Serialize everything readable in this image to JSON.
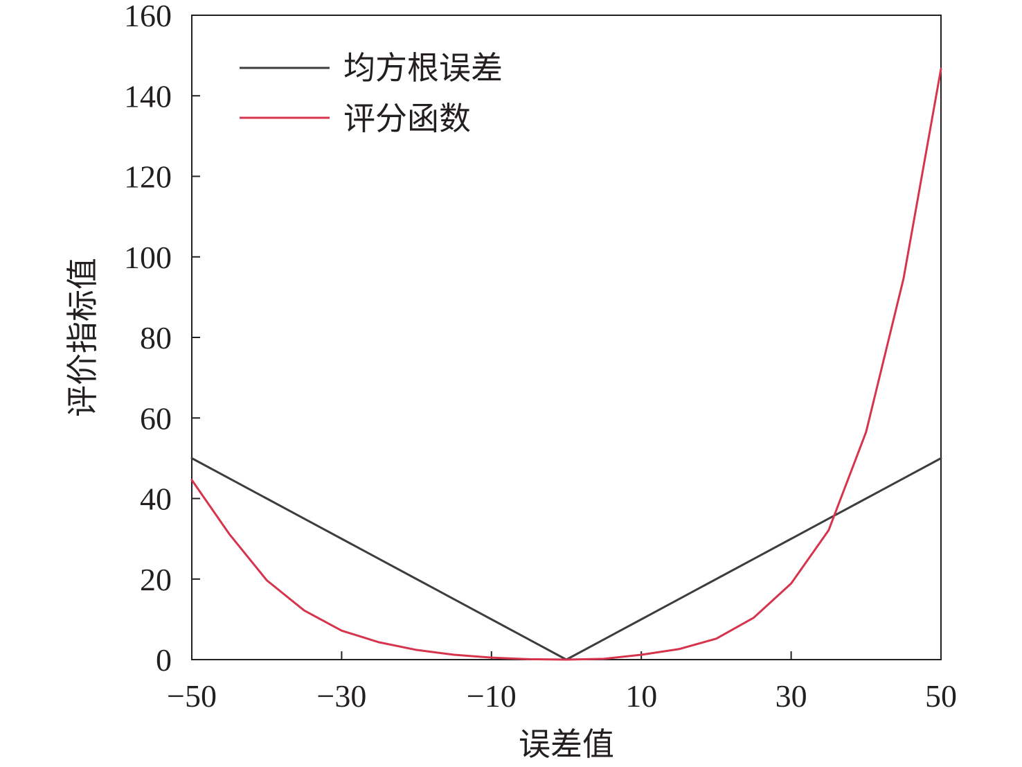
{
  "chart_data": {
    "type": "line",
    "xlabel": "误差值",
    "ylabel": "评价指标值",
    "xlim": [
      -50,
      50
    ],
    "ylim": [
      0,
      160
    ],
    "x_ticks": [
      -50,
      -30,
      -10,
      10,
      30,
      50
    ],
    "x_tick_labels": [
      "−50",
      "−30",
      "−10",
      "10",
      "30",
      "50"
    ],
    "y_ticks": [
      0,
      20,
      40,
      60,
      80,
      100,
      120,
      140,
      160
    ],
    "y_tick_labels": [
      "0",
      "20",
      "40",
      "60",
      "80",
      "100",
      "120",
      "140",
      "160"
    ],
    "grid": false,
    "legend_position": "top-left",
    "x": [
      -50,
      -45,
      -40,
      -35,
      -30,
      -25,
      -20,
      -15,
      -10,
      -5,
      0,
      5,
      10,
      15,
      20,
      25,
      30,
      35,
      40,
      45,
      50
    ],
    "series": [
      {
        "name": "均方根误差",
        "color": "#3d3d3d",
        "values": [
          50,
          45,
          40,
          35,
          30,
          25,
          20,
          15,
          10,
          5,
          0,
          5,
          10,
          15,
          20,
          25,
          30,
          35,
          40,
          45,
          50
        ]
      },
      {
        "name": "评分函数",
        "color": "#d6344c",
        "values": [
          44.6,
          31.2,
          19.7,
          12.2,
          7.2,
          4.3,
          2.4,
          1.2,
          0.5,
          0.1,
          0,
          0.2,
          1.2,
          2.6,
          5.2,
          10.4,
          18.9,
          32.1,
          56.5,
          94.6,
          146.7
        ]
      }
    ]
  }
}
